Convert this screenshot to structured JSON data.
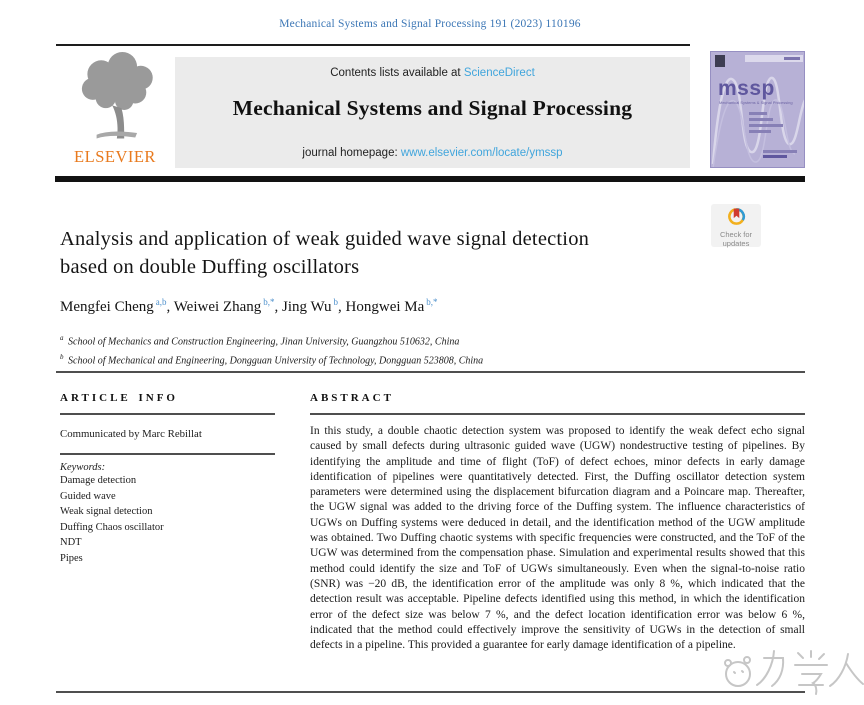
{
  "page": {
    "journal_ref": "Mechanical Systems and Signal Processing 191 (2023) 110196"
  },
  "header": {
    "contents_prefix": "Contents lists available at ",
    "sciencedirect": "ScienceDirect",
    "journal_title": "Mechanical Systems and Signal Processing",
    "homepage_prefix": "journal homepage: ",
    "homepage_url": "www.elsevier.com/locate/ymssp",
    "elsevier_label": "ELSEVIER",
    "cover_abbrev": "mssp",
    "cover_subtitle": "Mechanical Systems & Signal Processing"
  },
  "badge": {
    "line1": "Check for",
    "line2": "updates"
  },
  "article": {
    "title_line1": "Analysis and application of weak guided wave signal detection",
    "title_line2": "based on double Duffing oscillators",
    "authors": [
      {
        "name": "Mengfei Cheng",
        "sup": "a,b"
      },
      {
        "name": "Weiwei Zhang",
        "sup": "b,*"
      },
      {
        "name": "Jing Wu",
        "sup": "b"
      },
      {
        "name": "Hongwei Ma",
        "sup": "b,*"
      }
    ],
    "affiliations": [
      {
        "sup": "a",
        "text": "School of Mechanics and Construction Engineering, Jinan University, Guangzhou 510632, China"
      },
      {
        "sup": "b",
        "text": "School of Mechanical and Engineering, Dongguan University of Technology, Dongguan 523808, China"
      }
    ]
  },
  "article_info": {
    "heading": "ARTICLE INFO",
    "communicated": "Communicated by Marc Rebillat",
    "keywords_label": "Keywords:",
    "keywords": [
      "Damage detection",
      "Guided wave",
      "Weak signal detection",
      "Duffing Chaos oscillator",
      "NDT",
      "Pipes"
    ]
  },
  "abstract": {
    "heading": "ABSTRACT",
    "text": "In this study, a double chaotic detection system was proposed to identify the weak defect echo signal caused by small defects during ultrasonic guided wave (UGW) nondestructive testing of pipelines. By identifying the amplitude and time of flight (ToF) of defect echoes, minor defects in early damage identification of pipelines were quantitatively detected. First, the Duffing oscillator detection system parameters were determined using the displacement bifurcation diagram and a Poincare map. Thereafter, the UGW signal was added to the driving force of the Duffing system. The influence characteristics of UGWs on Duffing systems were deduced in detail, and the identification method of the UGW amplitude was obtained. Two Duffing chaotic systems with specific frequencies were constructed, and the ToF of the UGW was determined from the compensation phase. Simulation and experimental results showed that this method could identify the size and ToF of UGWs simultaneously. Even when the signal-to-noise ratio (SNR) was −20 dB, the identification error of the amplitude was only 8 %, which indicated that the detection result was acceptable. Pipeline defects identified using this method, in which the identification error of the defect size was below 7 %, and the defect location identification error was below 6 %, indicated that the method could effectively improve the sensitivity of UGWs in the detection of small defects in a pipeline. This provided a guarantee for early damage identification of a pipeline."
  },
  "watermark": {
    "text": "力学人"
  },
  "colors": {
    "ref_blue": "#3b76b5",
    "link_blue": "#41a5dc",
    "sup_blue": "#4b8fcb",
    "elsevier_orange": "#e87a1e",
    "banner_bg": "#ebebeb",
    "cover_bg": "#b7b1d6",
    "cover_text": "#5f579e",
    "bar_black": "#121212",
    "rule_gray": "#4f4f4f",
    "text_dark": "#1c1c1c",
    "badge_bg": "#f2f2f2",
    "badge_text": "#8a8a8a",
    "watermark_gray": "#bdbdbd"
  }
}
